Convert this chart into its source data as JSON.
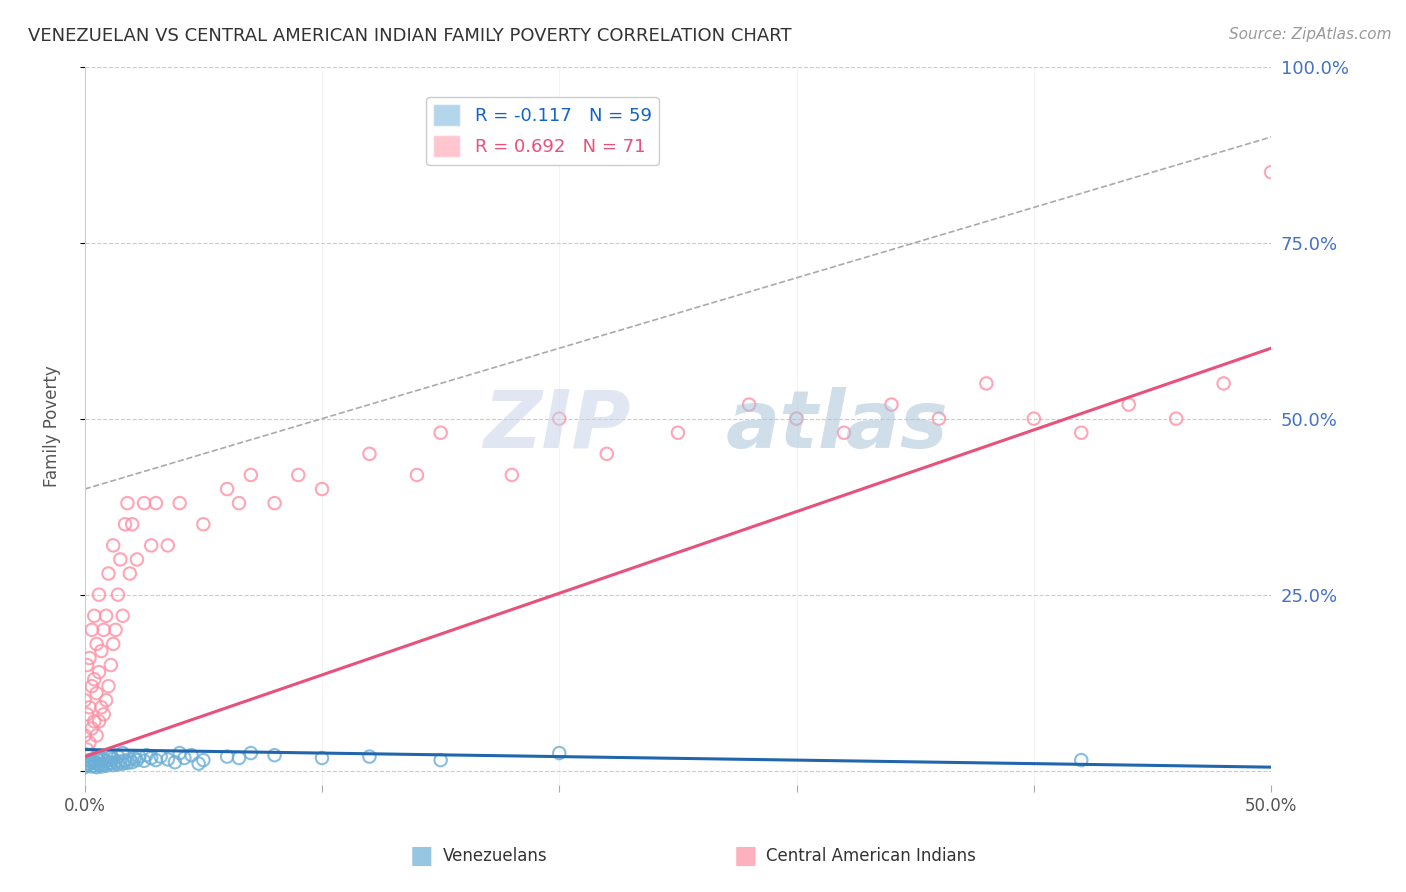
{
  "title": "VENEZUELAN VS CENTRAL AMERICAN INDIAN FAMILY POVERTY CORRELATION CHART",
  "source": "Source: ZipAtlas.com",
  "ylabel": "Family Poverty",
  "xlim": [
    0.0,
    0.5
  ],
  "ylim": [
    -0.02,
    1.0
  ],
  "blue_color": "#6BAED6",
  "pink_color": "#FF8FA3",
  "blue_line_color": "#2166AC",
  "pink_line_color": "#E8517A",
  "blue_R": -0.117,
  "blue_N": 59,
  "pink_R": 0.692,
  "pink_N": 71,
  "watermark": "ZIPAtlas",
  "grid_color": "#CCCCCC",
  "ref_line_x": [
    0.0,
    0.5
  ],
  "ref_line_y": [
    0.4,
    0.9
  ],
  "blue_trend_x": [
    0.0,
    0.5
  ],
  "blue_trend_y": [
    0.03,
    0.005
  ],
  "pink_trend_x": [
    0.0,
    0.5
  ],
  "pink_trend_y": [
    0.02,
    0.6
  ],
  "blue_scatter_x": [
    0.0,
    0.001,
    0.002,
    0.002,
    0.003,
    0.003,
    0.004,
    0.004,
    0.005,
    0.005,
    0.005,
    0.006,
    0.006,
    0.007,
    0.007,
    0.008,
    0.008,
    0.009,
    0.009,
    0.01,
    0.01,
    0.011,
    0.011,
    0.012,
    0.012,
    0.013,
    0.014,
    0.014,
    0.015,
    0.016,
    0.016,
    0.017,
    0.018,
    0.019,
    0.02,
    0.021,
    0.022,
    0.023,
    0.025,
    0.026,
    0.028,
    0.03,
    0.032,
    0.035,
    0.038,
    0.04,
    0.042,
    0.045,
    0.048,
    0.05,
    0.06,
    0.065,
    0.07,
    0.08,
    0.1,
    0.12,
    0.15,
    0.2,
    0.42
  ],
  "blue_scatter_y": [
    0.005,
    0.008,
    0.01,
    0.015,
    0.006,
    0.012,
    0.007,
    0.013,
    0.005,
    0.01,
    0.02,
    0.008,
    0.015,
    0.006,
    0.018,
    0.009,
    0.016,
    0.007,
    0.014,
    0.01,
    0.022,
    0.011,
    0.019,
    0.008,
    0.017,
    0.012,
    0.009,
    0.02,
    0.013,
    0.01,
    0.025,
    0.014,
    0.011,
    0.016,
    0.012,
    0.018,
    0.015,
    0.02,
    0.014,
    0.022,
    0.018,
    0.015,
    0.02,
    0.016,
    0.012,
    0.025,
    0.018,
    0.022,
    0.01,
    0.015,
    0.02,
    0.018,
    0.025,
    0.022,
    0.018,
    0.02,
    0.015,
    0.025,
    0.015
  ],
  "pink_scatter_x": [
    0.0,
    0.0,
    0.001,
    0.001,
    0.001,
    0.002,
    0.002,
    0.002,
    0.003,
    0.003,
    0.003,
    0.004,
    0.004,
    0.004,
    0.005,
    0.005,
    0.005,
    0.006,
    0.006,
    0.006,
    0.007,
    0.007,
    0.008,
    0.008,
    0.009,
    0.009,
    0.01,
    0.01,
    0.011,
    0.012,
    0.012,
    0.013,
    0.014,
    0.015,
    0.016,
    0.017,
    0.018,
    0.019,
    0.02,
    0.022,
    0.025,
    0.028,
    0.03,
    0.035,
    0.04,
    0.05,
    0.06,
    0.065,
    0.07,
    0.08,
    0.09,
    0.1,
    0.12,
    0.14,
    0.15,
    0.18,
    0.2,
    0.22,
    0.25,
    0.28,
    0.3,
    0.32,
    0.34,
    0.36,
    0.38,
    0.4,
    0.42,
    0.44,
    0.46,
    0.48,
    0.5
  ],
  "pink_scatter_y": [
    0.05,
    0.1,
    0.03,
    0.08,
    0.15,
    0.04,
    0.09,
    0.16,
    0.06,
    0.12,
    0.2,
    0.07,
    0.13,
    0.22,
    0.05,
    0.11,
    0.18,
    0.07,
    0.14,
    0.25,
    0.09,
    0.17,
    0.08,
    0.2,
    0.1,
    0.22,
    0.12,
    0.28,
    0.15,
    0.18,
    0.32,
    0.2,
    0.25,
    0.3,
    0.22,
    0.35,
    0.38,
    0.28,
    0.35,
    0.3,
    0.38,
    0.32,
    0.38,
    0.32,
    0.38,
    0.35,
    0.4,
    0.38,
    0.42,
    0.38,
    0.42,
    0.4,
    0.45,
    0.42,
    0.48,
    0.42,
    0.5,
    0.45,
    0.48,
    0.52,
    0.5,
    0.48,
    0.52,
    0.5,
    0.55,
    0.5,
    0.48,
    0.52,
    0.5,
    0.55,
    0.85
  ]
}
